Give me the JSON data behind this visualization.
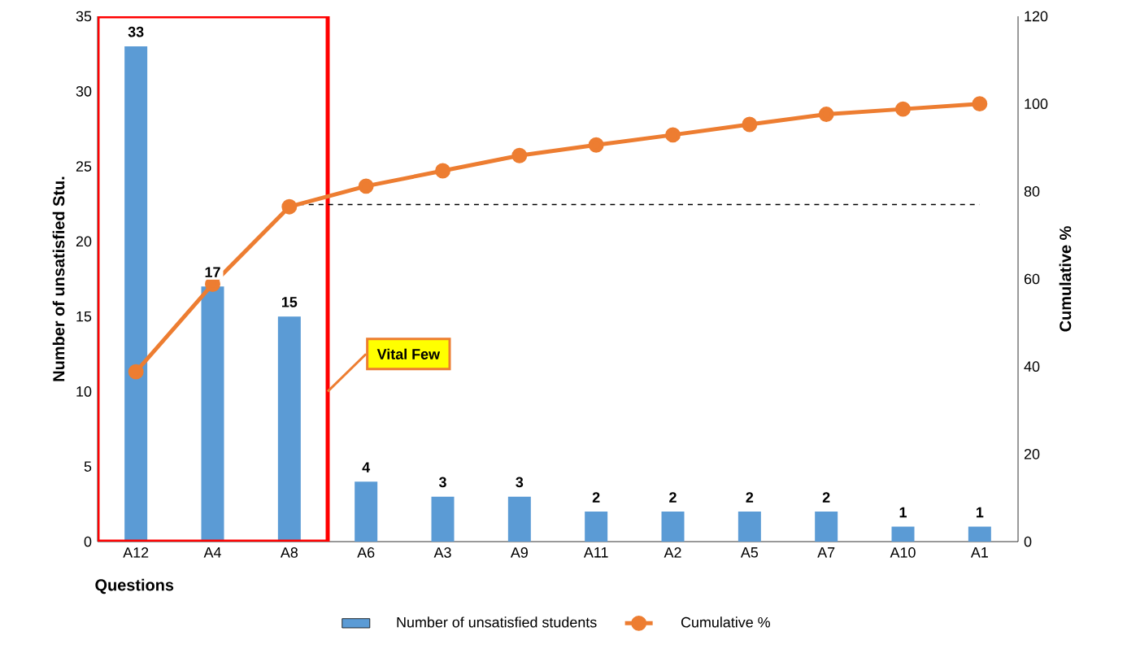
{
  "chart_data": {
    "type": "bar",
    "xlabel": "Questions",
    "ylabel": "Number of unsatisfied Stu.",
    "y2label": "Cumulative %",
    "categories": [
      "A12",
      "A4",
      "A8",
      "A6",
      "A3",
      "A9",
      "A11",
      "A2",
      "A5",
      "A7",
      "A10",
      "A1"
    ],
    "series": [
      {
        "name": "Number of unsatisfied students",
        "color": "#5b9bd5",
        "values": [
          33,
          17,
          15,
          4,
          3,
          3,
          2,
          2,
          2,
          2,
          1,
          1
        ],
        "value_labels": [
          "33",
          "17",
          "15",
          "4",
          "3",
          "3",
          "2",
          "2",
          "2",
          "2",
          "1",
          "1"
        ]
      },
      {
        "name": "Cumulative %",
        "type": "line",
        "axis": "y2",
        "color": "#ed7d31",
        "marker": "circle",
        "values": [
          38.8,
          58.8,
          76.5,
          81.2,
          84.7,
          88.2,
          90.6,
          92.9,
          95.3,
          97.6,
          98.8,
          100
        ]
      }
    ],
    "ylim": [
      0,
      35
    ],
    "yticks": [
      0,
      5,
      10,
      15,
      20,
      25,
      30,
      35
    ],
    "y2lim": [
      0,
      120
    ],
    "y2ticks": [
      0,
      20,
      40,
      60,
      80,
      100,
      120
    ],
    "ref_lines": [
      {
        "axis": "y2",
        "value": 77,
        "color": "#000000",
        "line_style": "dashed"
      }
    ],
    "annotations": [
      "Vital Few"
    ],
    "legend": "bottom",
    "grid": false
  }
}
